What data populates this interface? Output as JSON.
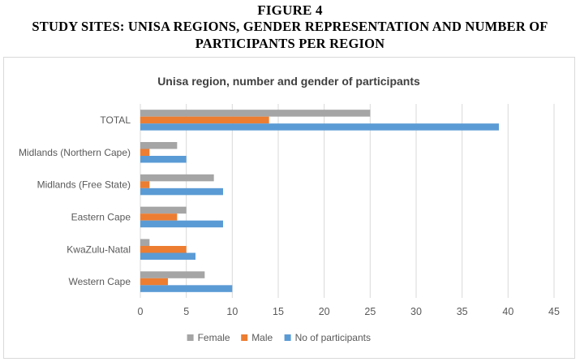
{
  "figure": {
    "label": "FIGURE 4",
    "caption": "STUDY SITES: UNISA REGIONS, GENDER REPRESENTATION AND NUMBER OF PARTICIPANTS PER REGION"
  },
  "chart_data": {
    "type": "bar",
    "orientation": "horizontal",
    "title": "Unisa region, number and gender of participants",
    "categories": [
      "TOTAL",
      "Midlands (Northern Cape)",
      "Midlands (Free State)",
      "Eastern Cape",
      "KwaZulu-Natal",
      "Western Cape"
    ],
    "series": [
      {
        "name": "Female",
        "color": "#a5a5a5",
        "values": [
          25,
          4,
          8,
          5,
          1,
          7
        ]
      },
      {
        "name": "Male",
        "color": "#ed7d31",
        "values": [
          14,
          1,
          1,
          4,
          5,
          3
        ]
      },
      {
        "name": "No of participants",
        "color": "#5b9bd5",
        "values": [
          39,
          5,
          9,
          9,
          6,
          10
        ]
      }
    ],
    "xlim": [
      0,
      45
    ],
    "xticks": [
      0,
      5,
      10,
      15,
      20,
      25,
      30,
      35,
      40,
      45
    ],
    "xlabel": "",
    "ylabel": "",
    "grid": true,
    "legend_position": "bottom"
  }
}
